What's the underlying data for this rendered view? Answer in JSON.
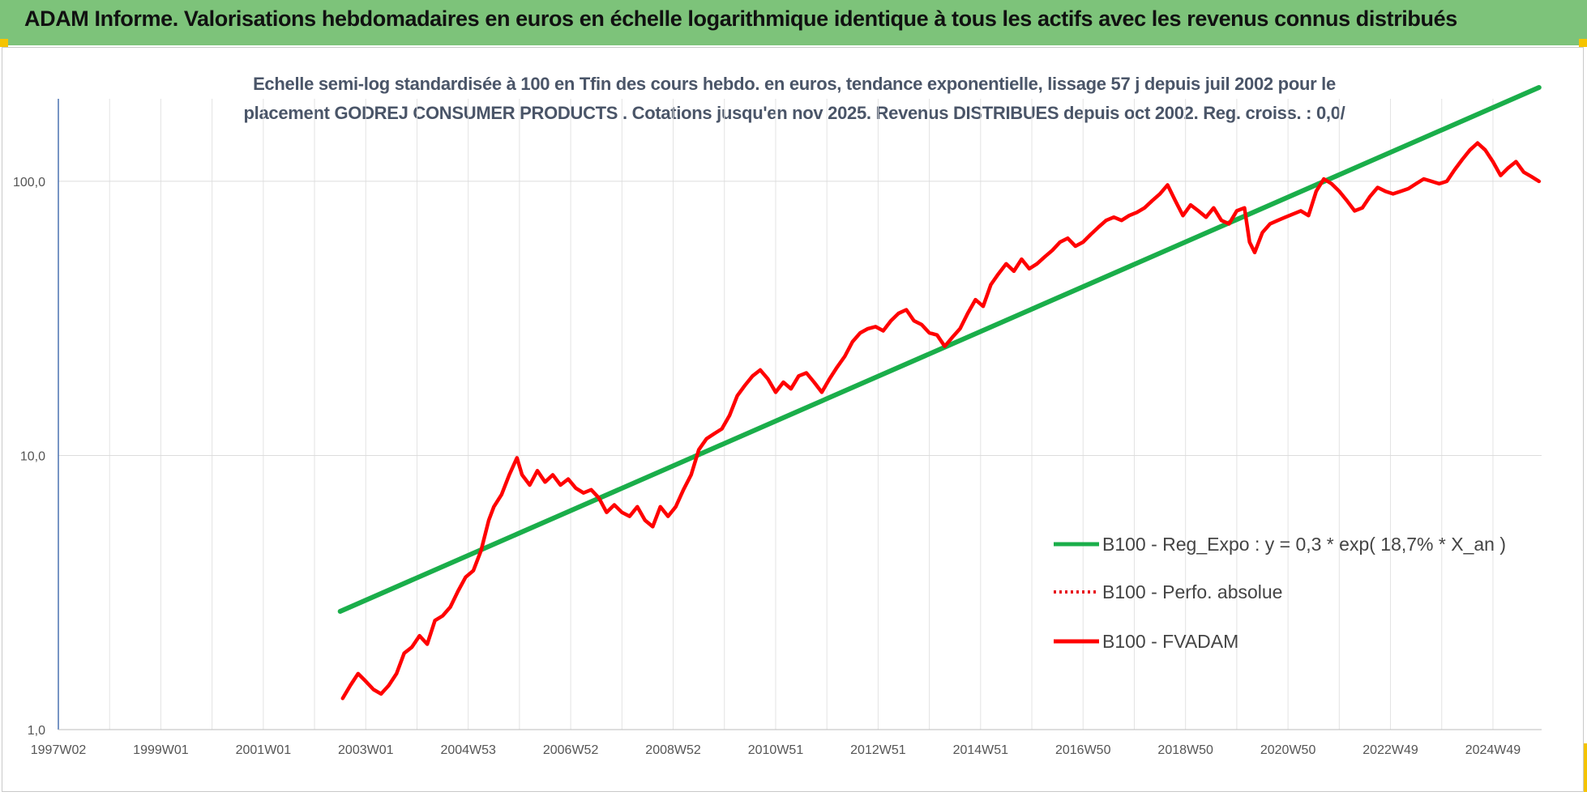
{
  "banner": {
    "title": "ADAM Informe. Valorisations hebdomadaires en euros en échelle logarithmique identique à tous les actifs avec les revenus connus distribués"
  },
  "colors": {
    "banner_bg": "#7dc37a",
    "corner_accent": "#f5c400",
    "regression": "#1aae4a",
    "perfo": "#e8141c",
    "fvadam": "#ff0000"
  },
  "chart_data": {
    "type": "line",
    "title": "Echelle semi-log standardisée à 100 en Tfin des cours hebdo. en euros, tendance exponentielle, lissage 57 j depuis juil 2002 pour le placement GODREJ CONSUMER PRODUCTS . Cotations jusqu'en nov 2025. Revenus DISTRIBUES depuis oct 2002. Reg. croiss. : 0,0/",
    "title_lines": [
      "Echelle semi-log standardisée à 100 en Tfin des cours hebdo. en euros, tendance exponentielle, lissage 57 j depuis juil 2002 pour le",
      "placement GODREJ CONSUMER PRODUCTS . Cotations jusqu'en nov 2025. Revenus DISTRIBUES depuis oct 2002. Reg. croiss. : 0,0/"
    ],
    "y_scale": "log",
    "ylim": [
      1,
      200
    ],
    "xlim": [
      1997.0,
      2025.95
    ],
    "grid": true,
    "legend_position": "right",
    "x_ticks": [
      {
        "x": 1997.0,
        "label": "1997W02"
      },
      {
        "x": 1999.0,
        "label": "1999W01"
      },
      {
        "x": 2001.0,
        "label": "2001W01"
      },
      {
        "x": 2003.0,
        "label": "2003W01"
      },
      {
        "x": 2005.0,
        "label": "2004W53"
      },
      {
        "x": 2007.0,
        "label": "2006W52"
      },
      {
        "x": 2009.0,
        "label": "2008W52"
      },
      {
        "x": 2011.0,
        "label": "2010W51"
      },
      {
        "x": 2013.0,
        "label": "2012W51"
      },
      {
        "x": 2015.0,
        "label": "2014W51"
      },
      {
        "x": 2017.0,
        "label": "2016W50"
      },
      {
        "x": 2019.0,
        "label": "2018W50"
      },
      {
        "x": 2021.0,
        "label": "2020W50"
      },
      {
        "x": 2023.0,
        "label": "2022W49"
      },
      {
        "x": 2025.0,
        "label": "2024W49"
      }
    ],
    "y_ticks": [
      {
        "y": 1,
        "label": "1,0"
      },
      {
        "y": 10,
        "label": "10,0"
      },
      {
        "y": 100,
        "label": "100,0"
      }
    ],
    "series": [
      {
        "name": "B100 - Reg_Expo : y = 0,3 * exp( 18,7% *  X_an )",
        "style": "solid",
        "points": [
          [
            2002.5,
            2.7
          ],
          [
            2025.9,
            220
          ]
        ]
      },
      {
        "name": "B100 - Perfo. absolue",
        "style": "dotted",
        "points": []
      },
      {
        "name": "B100 - FVADAM",
        "style": "solid",
        "points": [
          [
            2002.55,
            1.3
          ],
          [
            2002.7,
            1.45
          ],
          [
            2002.85,
            1.6
          ],
          [
            2003.0,
            1.5
          ],
          [
            2003.15,
            1.4
          ],
          [
            2003.3,
            1.35
          ],
          [
            2003.45,
            1.45
          ],
          [
            2003.6,
            1.6
          ],
          [
            2003.75,
            1.9
          ],
          [
            2003.9,
            2.0
          ],
          [
            2004.05,
            2.2
          ],
          [
            2004.2,
            2.05
          ],
          [
            2004.35,
            2.5
          ],
          [
            2004.5,
            2.6
          ],
          [
            2004.65,
            2.8
          ],
          [
            2004.8,
            3.2
          ],
          [
            2004.95,
            3.6
          ],
          [
            2005.1,
            3.8
          ],
          [
            2005.25,
            4.5
          ],
          [
            2005.4,
            5.8
          ],
          [
            2005.5,
            6.5
          ],
          [
            2005.65,
            7.2
          ],
          [
            2005.8,
            8.5
          ],
          [
            2005.95,
            9.8
          ],
          [
            2006.05,
            8.5
          ],
          [
            2006.2,
            7.8
          ],
          [
            2006.35,
            8.8
          ],
          [
            2006.5,
            8.0
          ],
          [
            2006.65,
            8.5
          ],
          [
            2006.8,
            7.8
          ],
          [
            2006.95,
            8.2
          ],
          [
            2007.1,
            7.6
          ],
          [
            2007.25,
            7.3
          ],
          [
            2007.4,
            7.5
          ],
          [
            2007.55,
            7.0
          ],
          [
            2007.7,
            6.2
          ],
          [
            2007.85,
            6.6
          ],
          [
            2008.0,
            6.2
          ],
          [
            2008.15,
            6.0
          ],
          [
            2008.3,
            6.5
          ],
          [
            2008.45,
            5.8
          ],
          [
            2008.6,
            5.5
          ],
          [
            2008.75,
            6.5
          ],
          [
            2008.9,
            6.0
          ],
          [
            2009.05,
            6.5
          ],
          [
            2009.2,
            7.5
          ],
          [
            2009.35,
            8.5
          ],
          [
            2009.5,
            10.5
          ],
          [
            2009.65,
            11.5
          ],
          [
            2009.8,
            12.0
          ],
          [
            2009.95,
            12.5
          ],
          [
            2010.1,
            14.0
          ],
          [
            2010.25,
            16.5
          ],
          [
            2010.4,
            18.0
          ],
          [
            2010.55,
            19.5
          ],
          [
            2010.7,
            20.5
          ],
          [
            2010.85,
            19.0
          ],
          [
            2011.0,
            17.0
          ],
          [
            2011.15,
            18.5
          ],
          [
            2011.3,
            17.5
          ],
          [
            2011.45,
            19.5
          ],
          [
            2011.6,
            20.0
          ],
          [
            2011.75,
            18.5
          ],
          [
            2011.9,
            17.0
          ],
          [
            2012.05,
            19.0
          ],
          [
            2012.2,
            21.0
          ],
          [
            2012.35,
            23.0
          ],
          [
            2012.5,
            26.0
          ],
          [
            2012.65,
            28.0
          ],
          [
            2012.8,
            29.0
          ],
          [
            2012.95,
            29.5
          ],
          [
            2013.1,
            28.5
          ],
          [
            2013.25,
            31.0
          ],
          [
            2013.4,
            33.0
          ],
          [
            2013.55,
            34.0
          ],
          [
            2013.7,
            31.0
          ],
          [
            2013.85,
            30.0
          ],
          [
            2014.0,
            28.0
          ],
          [
            2014.15,
            27.5
          ],
          [
            2014.3,
            25.0
          ],
          [
            2014.45,
            27.0
          ],
          [
            2014.6,
            29.0
          ],
          [
            2014.75,
            33.0
          ],
          [
            2014.9,
            37.0
          ],
          [
            2015.05,
            35.0
          ],
          [
            2015.2,
            42.0
          ],
          [
            2015.35,
            46.0
          ],
          [
            2015.5,
            50.0
          ],
          [
            2015.65,
            47.0
          ],
          [
            2015.8,
            52.0
          ],
          [
            2015.95,
            48.0
          ],
          [
            2016.1,
            50.0
          ],
          [
            2016.25,
            53.0
          ],
          [
            2016.4,
            56.0
          ],
          [
            2016.55,
            60.0
          ],
          [
            2016.7,
            62.0
          ],
          [
            2016.85,
            58.0
          ],
          [
            2017.0,
            60.0
          ],
          [
            2017.15,
            64.0
          ],
          [
            2017.3,
            68.0
          ],
          [
            2017.45,
            72.0
          ],
          [
            2017.6,
            74.0
          ],
          [
            2017.75,
            72.0
          ],
          [
            2017.9,
            75.0
          ],
          [
            2018.05,
            77.0
          ],
          [
            2018.2,
            80.0
          ],
          [
            2018.35,
            85.0
          ],
          [
            2018.5,
            90.0
          ],
          [
            2018.65,
            97.0
          ],
          [
            2018.8,
            85.0
          ],
          [
            2018.95,
            75.0
          ],
          [
            2019.1,
            82.0
          ],
          [
            2019.25,
            78.0
          ],
          [
            2019.4,
            74.0
          ],
          [
            2019.55,
            80.0
          ],
          [
            2019.7,
            72.0
          ],
          [
            2019.85,
            70.0
          ],
          [
            2020.0,
            78.0
          ],
          [
            2020.15,
            80.0
          ],
          [
            2020.25,
            60.0
          ],
          [
            2020.35,
            55.0
          ],
          [
            2020.5,
            65.0
          ],
          [
            2020.65,
            70.0
          ],
          [
            2020.8,
            72.0
          ],
          [
            2020.95,
            74.0
          ],
          [
            2021.1,
            76.0
          ],
          [
            2021.25,
            78.0
          ],
          [
            2021.4,
            75.0
          ],
          [
            2021.55,
            92.0
          ],
          [
            2021.7,
            102.0
          ],
          [
            2021.85,
            98.0
          ],
          [
            2022.0,
            92.0
          ],
          [
            2022.15,
            85.0
          ],
          [
            2022.3,
            78.0
          ],
          [
            2022.45,
            80.0
          ],
          [
            2022.6,
            88.0
          ],
          [
            2022.75,
            95.0
          ],
          [
            2022.9,
            92.0
          ],
          [
            2023.05,
            90.0
          ],
          [
            2023.2,
            92.0
          ],
          [
            2023.35,
            94.0
          ],
          [
            2023.5,
            98.0
          ],
          [
            2023.65,
            102.0
          ],
          [
            2023.8,
            100.0
          ],
          [
            2023.95,
            98.0
          ],
          [
            2024.1,
            100.0
          ],
          [
            2024.25,
            110.0
          ],
          [
            2024.4,
            120.0
          ],
          [
            2024.55,
            130.0
          ],
          [
            2024.7,
            138.0
          ],
          [
            2024.85,
            130.0
          ],
          [
            2025.0,
            118.0
          ],
          [
            2025.15,
            105.0
          ],
          [
            2025.3,
            112.0
          ],
          [
            2025.45,
            118.0
          ],
          [
            2025.6,
            108.0
          ],
          [
            2025.75,
            104.0
          ],
          [
            2025.9,
            100.0
          ]
        ]
      }
    ]
  }
}
